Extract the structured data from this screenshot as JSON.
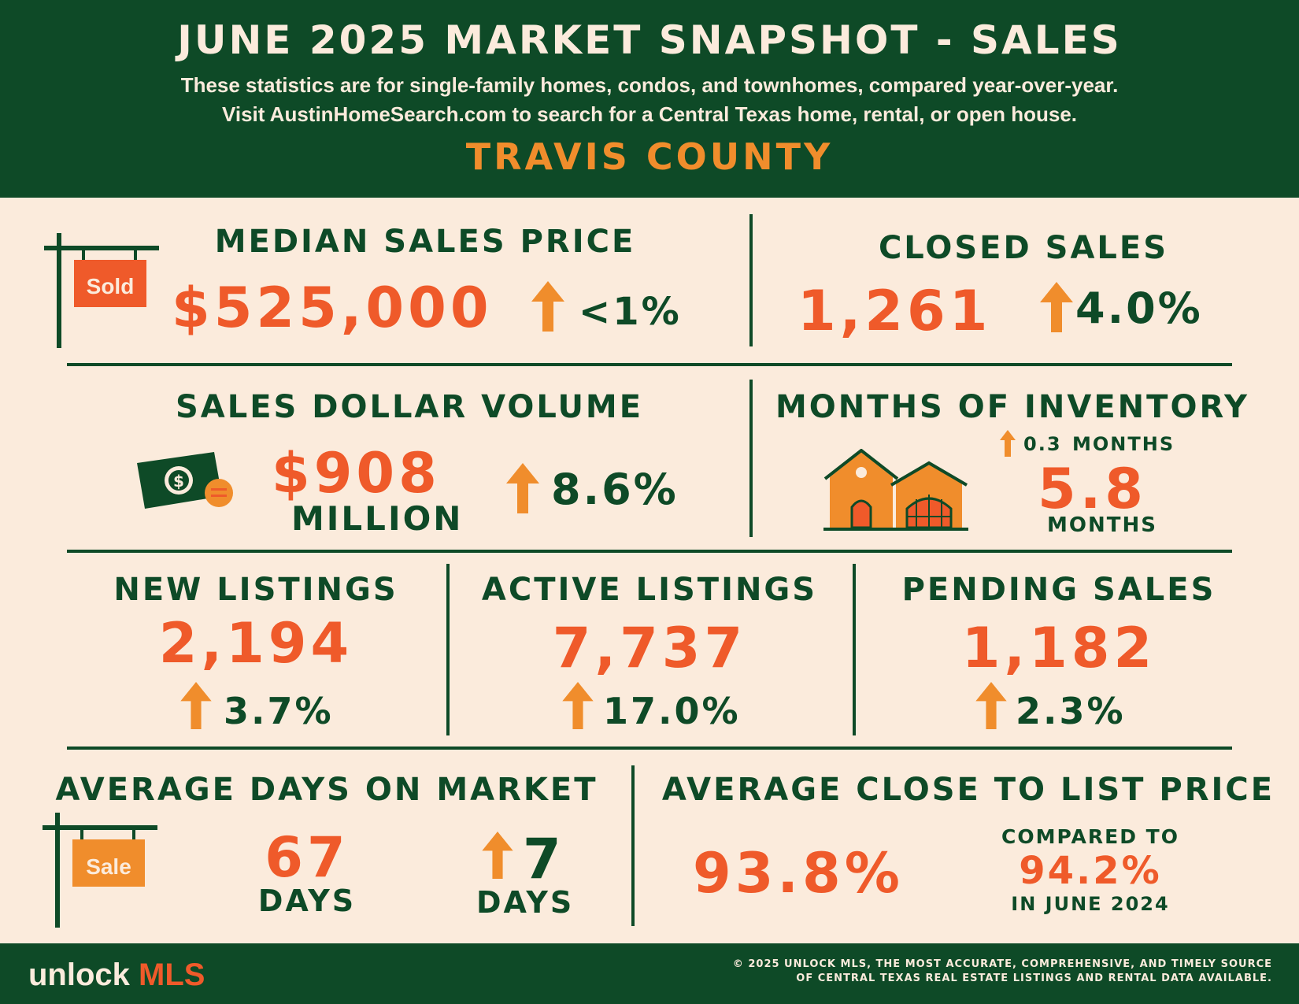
{
  "header": {
    "title": "JUNE 2025 MARKET SNAPSHOT - SALES",
    "subtitle_line1": "These statistics are for single-family homes, condos, and townhomes, compared year-over-year.",
    "subtitle_line2": "Visit AustinHomeSearch.com to search for a Central Texas home, rental, or open house.",
    "county": "TRAVIS COUNTY"
  },
  "median_sales_price": {
    "label": "MEDIAN SALES PRICE",
    "value": "$525,000",
    "change": "<1%",
    "sign_text": "Sold"
  },
  "closed_sales": {
    "label": "CLOSED SALES",
    "value": "1,261",
    "change": "4.0%"
  },
  "sales_dollar_volume": {
    "label": "SALES DOLLAR VOLUME",
    "value": "$908",
    "unit": "MILLION",
    "change": "8.6%"
  },
  "months_of_inventory": {
    "label": "MONTHS OF INVENTORY",
    "change_value": "0.3",
    "change_unit": "MONTHS",
    "value": "5.8",
    "unit": "MONTHS"
  },
  "new_listings": {
    "label": "NEW LISTINGS",
    "value": "2,194",
    "change": "3.7%"
  },
  "active_listings": {
    "label": "ACTIVE LISTINGS",
    "value": "7,737",
    "change": "17.0%"
  },
  "pending_sales": {
    "label": "PENDING SALES",
    "value": "1,182",
    "change": "2.3%"
  },
  "avg_days_on_market": {
    "label": "AVERAGE DAYS ON MARKET",
    "value": "67",
    "unit": "DAYS",
    "change": "7",
    "change_unit": "DAYS",
    "sign_text": "Sale"
  },
  "avg_close_to_list": {
    "label": "AVERAGE CLOSE TO LIST PRICE",
    "value": "93.8%",
    "compare_label": "COMPARED TO",
    "compare_value": "94.2%",
    "compare_period": "IN JUNE 2024"
  },
  "footer": {
    "logo_main": "unlock",
    "logo_accent": "MLS",
    "copyright_line1": "© 2025 UNLOCK MLS, THE MOST ACCURATE, COMPREHENSIVE, AND TIMELY SOURCE",
    "copyright_line2": "OF CENTRAL TEXAS REAL ESTATE LISTINGS AND RENTAL DATA AVAILABLE."
  },
  "colors": {
    "green": "#0e4a27",
    "orange": "#ef5a2a",
    "light_orange": "#f08d2c",
    "cream": "#fbebdc"
  }
}
